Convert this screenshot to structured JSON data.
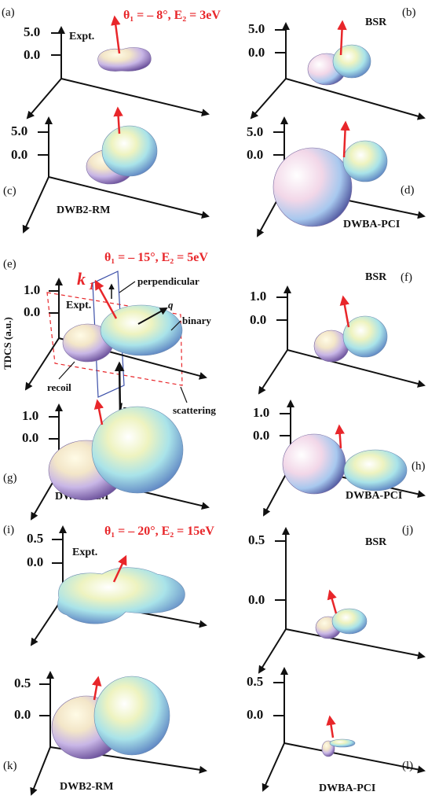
{
  "rows": [
    {
      "condition": "θ₁ = – 8°, E₂ = 3eV",
      "panels": [
        {
          "id": "a",
          "letter": "(a)",
          "method": "Expt.",
          "ticks": [
            "5.0",
            "0.0"
          ]
        },
        {
          "id": "b",
          "letter": "(b)",
          "method": "BSR",
          "ticks": [
            "5.0",
            "0.0"
          ]
        },
        {
          "id": "c",
          "letter": "(c)",
          "method": "DWB2-RM",
          "ticks": [
            "5.0",
            "0.0"
          ]
        },
        {
          "id": "d",
          "letter": "(d)",
          "method": "DWBA-PCI",
          "ticks": [
            "5.0",
            "0.0"
          ]
        }
      ]
    },
    {
      "condition": "θ₁ = – 15°, E₂ = 5eV",
      "panels": [
        {
          "id": "e",
          "letter": "(e)",
          "method": "Expt.",
          "ticks": [
            "1.0",
            "0.0"
          ]
        },
        {
          "id": "f",
          "letter": "(f)",
          "method": "BSR",
          "ticks": [
            "1.0",
            "0.0"
          ]
        },
        {
          "id": "g",
          "letter": "(g)",
          "method": "DWB2-RM",
          "ticks": [
            "1.0",
            "0.0"
          ]
        },
        {
          "id": "h",
          "letter": "(h)",
          "method": "DWBA-PCI",
          "ticks": [
            "1.0",
            "0.0"
          ]
        }
      ]
    },
    {
      "condition": "θ₁ = – 20°, E₂ = 15eV",
      "panels": [
        {
          "id": "i",
          "letter": "(i)",
          "method": "Expt.",
          "ticks": [
            "0.5",
            "0.0"
          ]
        },
        {
          "id": "j",
          "letter": "(j)",
          "method": "BSR",
          "ticks": [
            "0.5",
            "0.0"
          ]
        },
        {
          "id": "k",
          "letter": "(k)",
          "method": "DWB2-RM",
          "ticks": [
            "0.5",
            "0.0"
          ]
        },
        {
          "id": "l",
          "letter": "(l)",
          "method": "DWBA-PCI",
          "ticks": [
            "0.5",
            "0.0"
          ]
        }
      ]
    }
  ],
  "ylabel": "TDCS (a.u.)",
  "annotations": {
    "k1": "k",
    "k1_sub": "1",
    "k0": "k",
    "k0_sub": "0",
    "q": "q",
    "perpendicular": "perpendicular",
    "binary": "binary",
    "recoil": "recoil",
    "scattering": "scattering"
  },
  "colors": {
    "condition": "#e8262a",
    "momentum_arrow": "#e8262a",
    "plane_outline_scattering": "#e8262a",
    "plane_outline_perpendicular": "#3b4fa8"
  }
}
